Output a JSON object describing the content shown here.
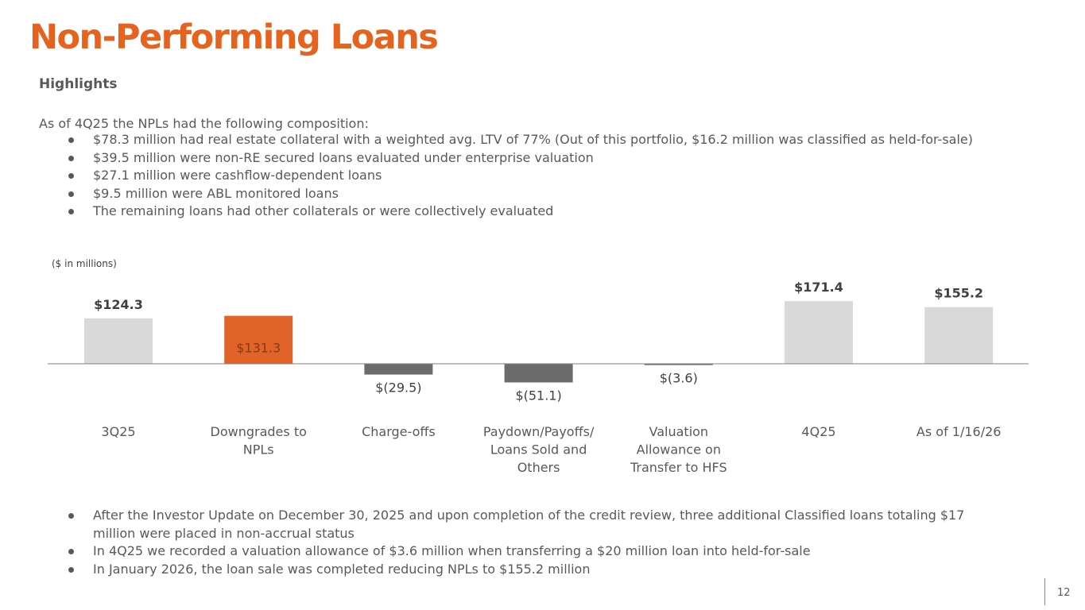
{
  "slide": {
    "title": "Non-Performing Loans",
    "subheading": "Highlights",
    "intro": "As of 4Q25 the NPLs had the following composition:",
    "composition_bullets": [
      "$78.3 million had real estate collateral with a weighted avg. LTV of 77% (Out of this portfolio, $16.2 million was classified as held-for-sale)",
      "$39.5 million were non-RE secured loans evaluated under enterprise valuation",
      "$27.1 million were cashflow-dependent loans",
      "$9.5 million were ABL monitored loans",
      "The remaining loans had other collaterals or were collectively evaluated"
    ],
    "notes_bullets": [
      "After the Investor Update on December 30, 2025 and upon completion of the credit review, three additional Classified loans totaling $17 million were placed in non-accrual  status",
      "In 4Q25 we recorded a valuation allowance of $3.6 million when transferring a $20 million loan into held-for-sale",
      "In January 2026, the loan sale was completed reducing NPLs to $155.2 million"
    ],
    "page_number": "12"
  },
  "colors": {
    "accent": "#E5621F",
    "total_bar": "#D9D9D9",
    "increase_bar": "#E0632A",
    "decrease_bar": "#6B6B6B",
    "text": "#595959"
  },
  "chart_data": {
    "type": "bar",
    "subtype": "waterfall",
    "unit_note": "($ in millions)",
    "categories": [
      "3Q25",
      "Downgrades to NPLs",
      "Charge-offs",
      "Paydown/Payoffs/ Loans Sold and Others",
      "Valuation Allowance on Transfer to HFS",
      "4Q25",
      "As of 1/16/26"
    ],
    "category_lines": [
      [
        "3Q25"
      ],
      [
        "Downgrades to",
        "NPLs"
      ],
      [
        "Charge-offs"
      ],
      [
        "Paydown/Payoffs/",
        "Loans Sold and",
        "Others"
      ],
      [
        "Valuation",
        "Allowance on",
        "Transfer to HFS"
      ],
      [
        "4Q25"
      ],
      [
        "As of 1/16/26"
      ]
    ],
    "values": [
      124.3,
      131.3,
      -29.5,
      -51.1,
      -3.6,
      171.4,
      155.2
    ],
    "bar_kinds": [
      "total",
      "increase",
      "decrease",
      "decrease",
      "decrease",
      "total",
      "total"
    ],
    "value_labels": [
      "$124.3",
      "$131.3",
      "$(29.5)",
      "$(51.1)",
      "$(3.6)",
      "$171.4",
      "$155.2"
    ],
    "ylim": [
      -60,
      180
    ],
    "grid": false,
    "legend": "none",
    "xlabel": "",
    "ylabel": ""
  }
}
